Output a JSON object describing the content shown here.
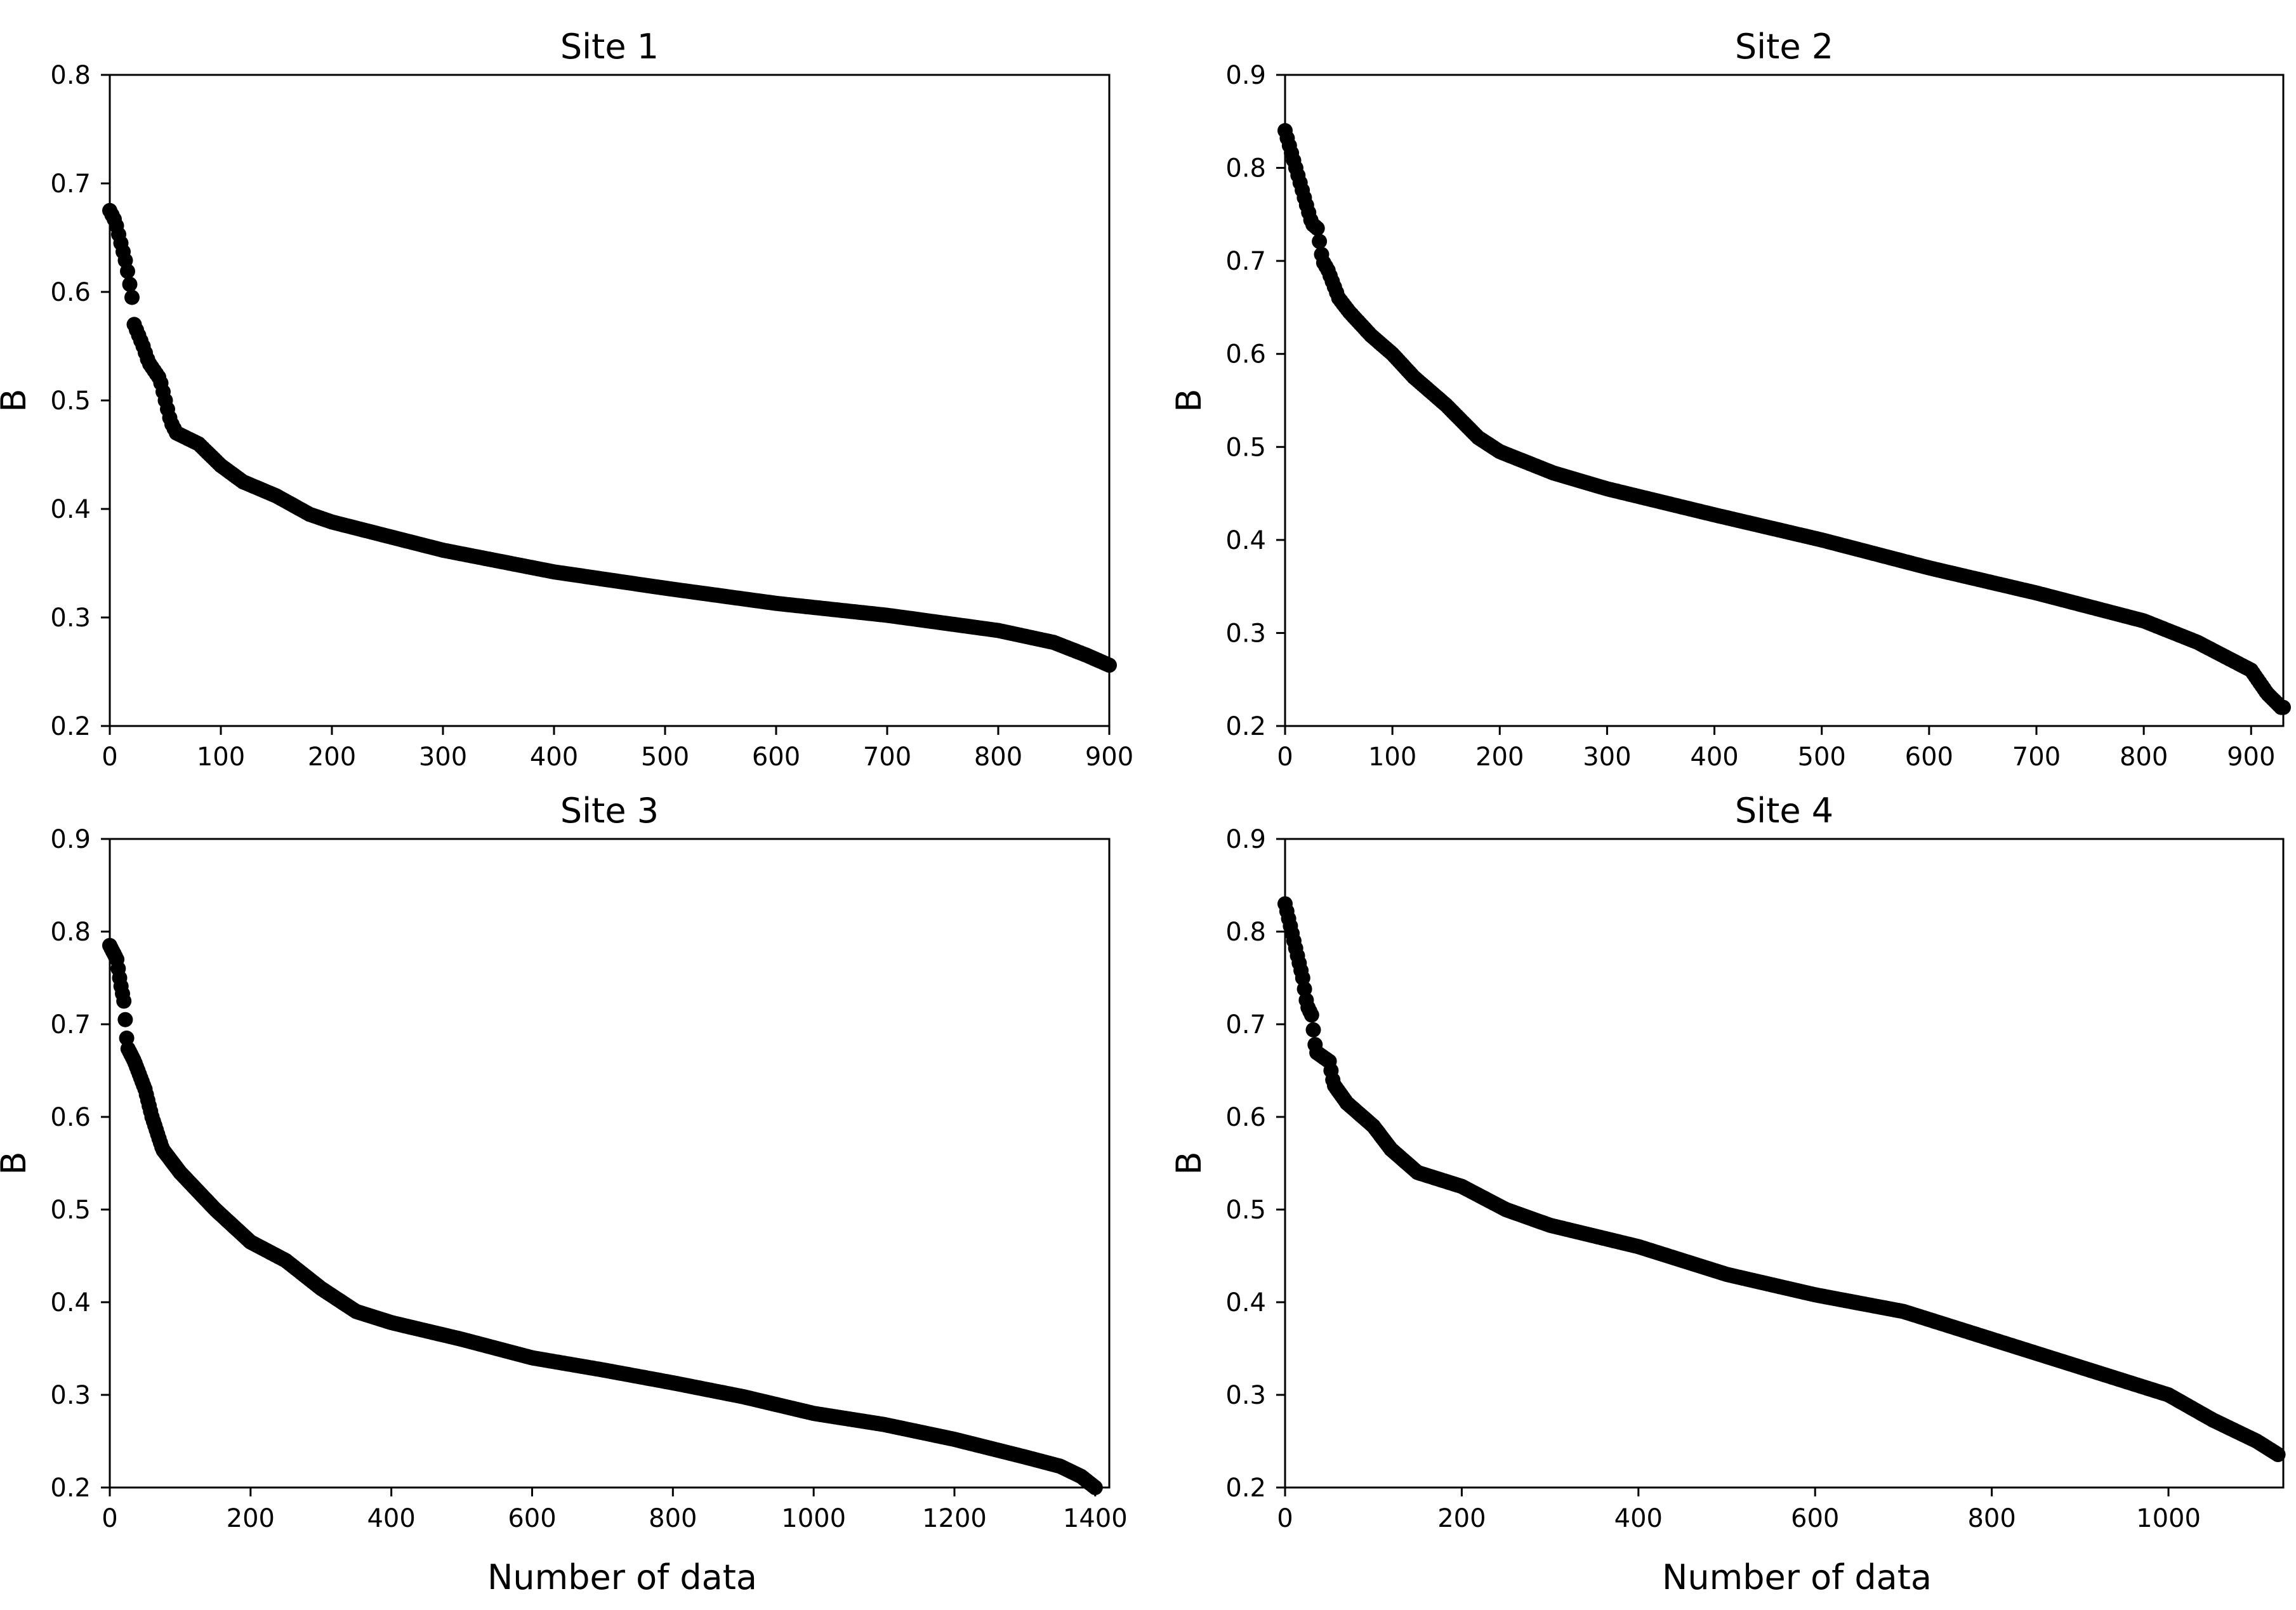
{
  "figure": {
    "description_note": "Four scatter panels of sorted B values"
  },
  "chart_data": [
    {
      "type": "scatter",
      "title": "Site 1",
      "xlabel": "",
      "ylabel": "B",
      "xlim": [
        0,
        900
      ],
      "ylim": [
        0.2,
        0.8
      ],
      "xticks": [
        0,
        100,
        200,
        300,
        400,
        500,
        600,
        700,
        800,
        900
      ],
      "xtick_labels": [
        "0",
        "100",
        "200",
        "300",
        "400",
        "500",
        "600",
        "700",
        "800",
        "900"
      ],
      "yticks": [
        0.2,
        0.3,
        0.4,
        0.5,
        0.6,
        0.7,
        0.8
      ],
      "ytick_labels": [
        "0.2",
        "0.3",
        "0.4",
        "0.5",
        "0.6",
        "0.7",
        "0.8"
      ],
      "series": [
        {
          "name": "B",
          "count": 900,
          "curve": [
            [
              0,
              0.675
            ],
            [
              5,
              0.665
            ],
            [
              10,
              0.645
            ],
            [
              15,
              0.625
            ],
            [
              20,
              0.595
            ],
            [
              22,
              0.57
            ],
            [
              30,
              0.55
            ],
            [
              35,
              0.535
            ],
            [
              45,
              0.52
            ],
            [
              50,
              0.5
            ],
            [
              55,
              0.48
            ],
            [
              60,
              0.47
            ],
            [
              80,
              0.46
            ],
            [
              100,
              0.44
            ],
            [
              120,
              0.425
            ],
            [
              150,
              0.412
            ],
            [
              180,
              0.395
            ],
            [
              200,
              0.388
            ],
            [
              300,
              0.362
            ],
            [
              400,
              0.342
            ],
            [
              500,
              0.327
            ],
            [
              600,
              0.313
            ],
            [
              700,
              0.302
            ],
            [
              800,
              0.288
            ],
            [
              850,
              0.277
            ],
            [
              880,
              0.265
            ],
            [
              900,
              0.256
            ]
          ]
        }
      ]
    },
    {
      "type": "scatter",
      "title": "Site 2",
      "xlabel": "",
      "ylabel": "B",
      "xlim": [
        0,
        930
      ],
      "ylim": [
        0.2,
        0.9
      ],
      "xticks": [
        0,
        100,
        200,
        300,
        400,
        500,
        600,
        700,
        800,
        900
      ],
      "xtick_labels": [
        "0",
        "100",
        "200",
        "300",
        "400",
        "500",
        "600",
        "700",
        "800",
        "900"
      ],
      "yticks": [
        0.2,
        0.3,
        0.4,
        0.5,
        0.6,
        0.7,
        0.8,
        0.9
      ],
      "ytick_labels": [
        "0.2",
        "0.3",
        "0.4",
        "0.5",
        "0.6",
        "0.7",
        "0.8",
        "0.9"
      ],
      "series": [
        {
          "name": "B",
          "count": 930,
          "curve": [
            [
              0,
              0.84
            ],
            [
              5,
              0.82
            ],
            [
              10,
              0.8
            ],
            [
              15,
              0.78
            ],
            [
              20,
              0.76
            ],
            [
              25,
              0.74
            ],
            [
              30,
              0.735
            ],
            [
              35,
              0.7
            ],
            [
              40,
              0.69
            ],
            [
              50,
              0.66
            ],
            [
              60,
              0.645
            ],
            [
              80,
              0.62
            ],
            [
              100,
              0.6
            ],
            [
              120,
              0.575
            ],
            [
              150,
              0.545
            ],
            [
              180,
              0.51
            ],
            [
              200,
              0.495
            ],
            [
              250,
              0.472
            ],
            [
              300,
              0.455
            ],
            [
              400,
              0.427
            ],
            [
              500,
              0.4
            ],
            [
              600,
              0.37
            ],
            [
              700,
              0.343
            ],
            [
              800,
              0.313
            ],
            [
              850,
              0.29
            ],
            [
              880,
              0.272
            ],
            [
              900,
              0.26
            ],
            [
              915,
              0.235
            ],
            [
              928,
              0.22
            ]
          ]
        }
      ]
    },
    {
      "type": "scatter",
      "title": "Site 3",
      "xlabel": "Number of data",
      "ylabel": "B",
      "xlim": [
        0,
        1420
      ],
      "ylim": [
        0.2,
        0.9
      ],
      "xticks": [
        0,
        200,
        400,
        600,
        800,
        1000,
        1200,
        1400
      ],
      "xtick_labels": [
        "0",
        "200",
        "400",
        "600",
        "800",
        "1000",
        "1200",
        "1400"
      ],
      "yticks": [
        0.2,
        0.3,
        0.4,
        0.5,
        0.6,
        0.7,
        0.8,
        0.9
      ],
      "ytick_labels": [
        "0.2",
        "0.3",
        "0.4",
        "0.5",
        "0.6",
        "0.7",
        "0.8",
        "0.9"
      ],
      "series": [
        {
          "name": "B",
          "count": 1400,
          "curve": [
            [
              0,
              0.785
            ],
            [
              10,
              0.77
            ],
            [
              15,
              0.745
            ],
            [
              20,
              0.725
            ],
            [
              25,
              0.675
            ],
            [
              35,
              0.66
            ],
            [
              50,
              0.63
            ],
            [
              60,
              0.6
            ],
            [
              75,
              0.565
            ],
            [
              100,
              0.54
            ],
            [
              150,
              0.5
            ],
            [
              200,
              0.465
            ],
            [
              250,
              0.445
            ],
            [
              300,
              0.415
            ],
            [
              350,
              0.39
            ],
            [
              400,
              0.378
            ],
            [
              500,
              0.36
            ],
            [
              600,
              0.34
            ],
            [
              700,
              0.327
            ],
            [
              800,
              0.313
            ],
            [
              900,
              0.298
            ],
            [
              1000,
              0.28
            ],
            [
              1100,
              0.268
            ],
            [
              1200,
              0.252
            ],
            [
              1300,
              0.233
            ],
            [
              1350,
              0.223
            ],
            [
              1380,
              0.212
            ],
            [
              1400,
              0.2
            ]
          ]
        }
      ]
    },
    {
      "type": "scatter",
      "title": "Site 4",
      "xlabel": "Number of data",
      "ylabel": "B",
      "xlim": [
        0,
        1130
      ],
      "ylim": [
        0.2,
        0.9
      ],
      "xticks": [
        0,
        200,
        400,
        600,
        800,
        1000
      ],
      "xtick_labels": [
        "0",
        "200",
        "400",
        "600",
        "800",
        "1000"
      ],
      "yticks": [
        0.2,
        0.3,
        0.4,
        0.5,
        0.6,
        0.7,
        0.8,
        0.9
      ],
      "ytick_labels": [
        "0.2",
        "0.3",
        "0.4",
        "0.5",
        "0.6",
        "0.7",
        "0.8",
        "0.9"
      ],
      "series": [
        {
          "name": "B",
          "count": 1125,
          "curve": [
            [
              0,
              0.83
            ],
            [
              5,
              0.81
            ],
            [
              10,
              0.79
            ],
            [
              20,
              0.75
            ],
            [
              25,
              0.72
            ],
            [
              30,
              0.71
            ],
            [
              35,
              0.67
            ],
            [
              50,
              0.66
            ],
            [
              55,
              0.635
            ],
            [
              70,
              0.615
            ],
            [
              100,
              0.59
            ],
            [
              120,
              0.565
            ],
            [
              150,
              0.54
            ],
            [
              200,
              0.525
            ],
            [
              250,
              0.5
            ],
            [
              300,
              0.483
            ],
            [
              400,
              0.46
            ],
            [
              500,
              0.43
            ],
            [
              600,
              0.408
            ],
            [
              700,
              0.39
            ],
            [
              800,
              0.36
            ],
            [
              900,
              0.33
            ],
            [
              1000,
              0.3
            ],
            [
              1050,
              0.273
            ],
            [
              1100,
              0.25
            ],
            [
              1125,
              0.235
            ]
          ]
        }
      ]
    }
  ]
}
